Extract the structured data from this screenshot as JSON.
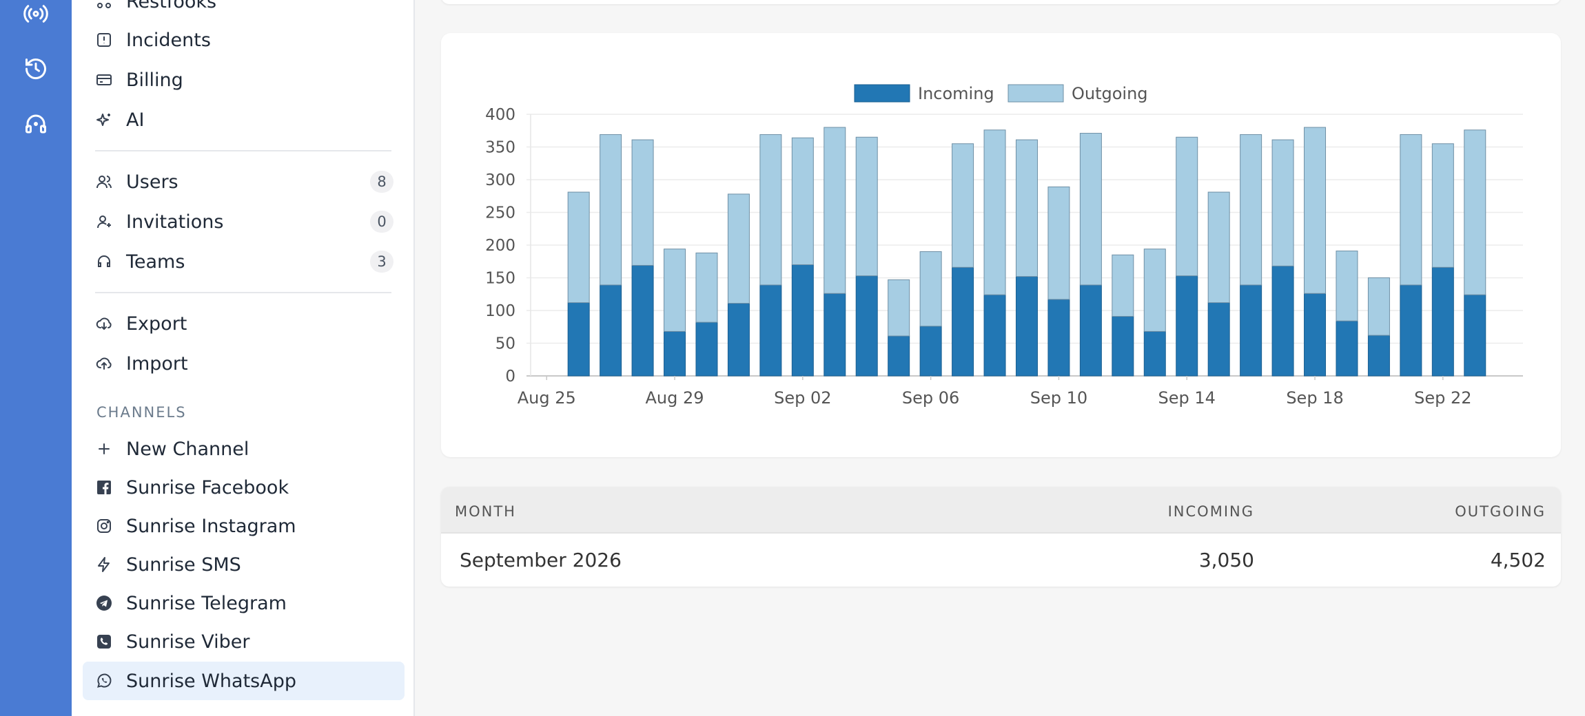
{
  "sidebar": {
    "items": [
      {
        "label": "Restfooks",
        "icon": "webhooks-icon"
      },
      {
        "label": "Incidents",
        "icon": "incidents-icon"
      },
      {
        "label": "Billing",
        "icon": "billing-icon"
      },
      {
        "label": "AI",
        "icon": "ai-sparkle-icon"
      },
      {
        "label": "Users",
        "count": "8",
        "icon": "users-icon"
      },
      {
        "label": "Invitations",
        "count": "0",
        "icon": "invitations-icon"
      },
      {
        "label": "Teams",
        "count": "3",
        "icon": "teams-icon"
      },
      {
        "label": "Export",
        "icon": "cloud-download-icon"
      },
      {
        "label": "Import",
        "icon": "cloud-upload-icon"
      }
    ],
    "channels_heading": "CHANNELS",
    "channels": [
      {
        "label": "New Channel",
        "icon": "plus-icon"
      },
      {
        "label": "Sunrise Facebook",
        "icon": "facebook-icon"
      },
      {
        "label": "Sunrise Instagram",
        "icon": "instagram-icon"
      },
      {
        "label": "Sunrise SMS",
        "icon": "sms-lightning-icon"
      },
      {
        "label": "Sunrise Telegram",
        "icon": "telegram-icon"
      },
      {
        "label": "Sunrise Viber",
        "icon": "viber-icon"
      },
      {
        "label": "Sunrise WhatsApp",
        "icon": "whatsapp-icon",
        "active": true
      }
    ]
  },
  "rail": {
    "icons": [
      "broadcast-icon",
      "history-icon",
      "support-headset-icon"
    ],
    "color": "#4a7bd3"
  },
  "chart_data": {
    "type": "bar",
    "stacked": true,
    "legend": [
      "Incoming",
      "Outgoing"
    ],
    "legend_position": "top",
    "colors": {
      "incoming": "#2277b4",
      "outgoing": "#a6cde3"
    },
    "x": [
      "Aug 26",
      "Aug 27",
      "Aug 28",
      "Aug 29",
      "Aug 30",
      "Aug 31",
      "Sep 01",
      "Sep 02",
      "Sep 03",
      "Sep 04",
      "Sep 05",
      "Sep 06",
      "Sep 07",
      "Sep 08",
      "Sep 09",
      "Sep 10",
      "Sep 11",
      "Sep 12",
      "Sep 13",
      "Sep 14",
      "Sep 15",
      "Sep 16",
      "Sep 17",
      "Sep 18",
      "Sep 19",
      "Sep 20",
      "Sep 21",
      "Sep 22",
      "Sep 23",
      "Sep 24"
    ],
    "series": [
      {
        "name": "Incoming",
        "values": [
          112,
          139,
          169,
          68,
          82,
          111,
          139,
          170,
          126,
          153,
          61,
          76,
          166,
          124,
          152,
          117,
          139,
          91,
          68,
          153,
          112,
          139,
          168,
          126,
          84,
          62,
          139,
          166,
          124,
          0
        ]
      },
      {
        "name": "Outgoing",
        "values": [
          169,
          230,
          192,
          126,
          106,
          167,
          230,
          194,
          254,
          212,
          86,
          114,
          189,
          252,
          209,
          172,
          232,
          94,
          126,
          212,
          169,
          230,
          193,
          254,
          107,
          88,
          230,
          189,
          252,
          0
        ]
      }
    ],
    "x_tick_labels": [
      "Aug 25",
      "Aug 29",
      "Sep 02",
      "Sep 06",
      "Sep 10",
      "Sep 14",
      "Sep 18",
      "Sep 22"
    ],
    "y_ticks": [
      0,
      50,
      100,
      150,
      200,
      250,
      300,
      350,
      400
    ],
    "ylim": [
      0,
      400
    ],
    "grid": true
  },
  "table": {
    "headers": {
      "month": "MONTH",
      "incoming": "INCOMING",
      "outgoing": "OUTGOING"
    },
    "rows": [
      {
        "month": "September 2026",
        "incoming": "3,050",
        "outgoing": "4,502"
      }
    ]
  }
}
